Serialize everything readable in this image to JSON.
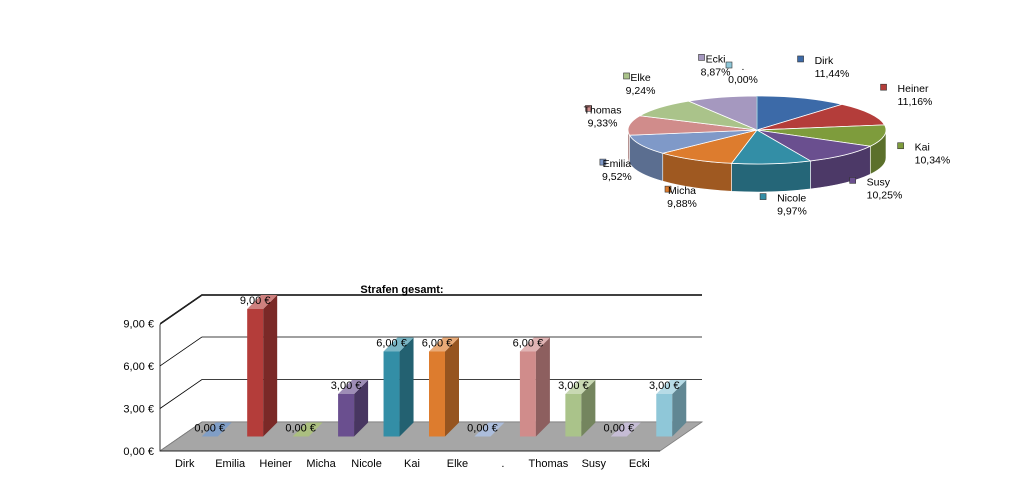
{
  "chart_data": [
    {
      "type": "pie",
      "slices": [
        {
          "name": "Dirk",
          "label": "11,44%",
          "value": 11.44,
          "color": "#3c6aa8"
        },
        {
          "name": "Heiner",
          "label": "11,16%",
          "value": 11.16,
          "color": "#b43d3a"
        },
        {
          "name": "Kai",
          "label": "10,34%",
          "value": 10.34,
          "color": "#7e9c3c"
        },
        {
          "name": "Susy",
          "label": "10,25%",
          "value": 10.25,
          "color": "#6a4f8f"
        },
        {
          "name": "Nicole",
          "label": "9,97%",
          "value": 9.97,
          "color": "#338ea6"
        },
        {
          "name": "Micha",
          "label": "9,88%",
          "value": 9.88,
          "color": "#dd7c2e"
        },
        {
          "name": "Emilia",
          "label": "9,52%",
          "value": 9.52,
          "color": "#7f99c8"
        },
        {
          "name": "Thomas",
          "label": "9,33%",
          "value": 9.33,
          "color": "#d08c8b"
        },
        {
          "name": "Elke",
          "label": "9,24%",
          "value": 9.24,
          "color": "#aac38a"
        },
        {
          "name": "Ecki",
          "label": "8,87%",
          "value": 8.87,
          "color": "#a598bf"
        },
        {
          "name": ".",
          "label": "0,00%",
          "value": 0.0,
          "color": "#8fc7d8"
        }
      ]
    },
    {
      "type": "bar",
      "title": "Strafen gesamt:",
      "categories": [
        "Dirk",
        "Emilia",
        "Heiner",
        "Micha",
        "Nicole",
        "Kai",
        "Elke",
        ".",
        "Thomas",
        "Susy",
        "Ecki"
      ],
      "values": [
        0,
        9,
        0,
        3,
        6,
        6,
        0,
        6,
        3,
        0,
        3
      ],
      "value_labels": [
        "0,00 €",
        "9,00 €",
        "0,00 €",
        "3,00 €",
        "6,00 €",
        "6,00 €",
        "0,00 €",
        "6,00 €",
        "3,00 €",
        "0,00 €",
        "3,00 €"
      ],
      "colors": [
        "#3c6aa8",
        "#b43d3a",
        "#7e9c3c",
        "#6a4f8f",
        "#338ea6",
        "#dd7c2e",
        "#7f99c8",
        "#d08c8b",
        "#aac38a",
        "#a598bf",
        "#8fc7d8"
      ],
      "yticks": [
        "0,00 €",
        "3,00 €",
        "6,00 €",
        "9,00 €"
      ],
      "ytick_values": [
        0,
        3,
        6,
        9
      ],
      "ylim": [
        0,
        9
      ],
      "grid": true
    }
  ]
}
